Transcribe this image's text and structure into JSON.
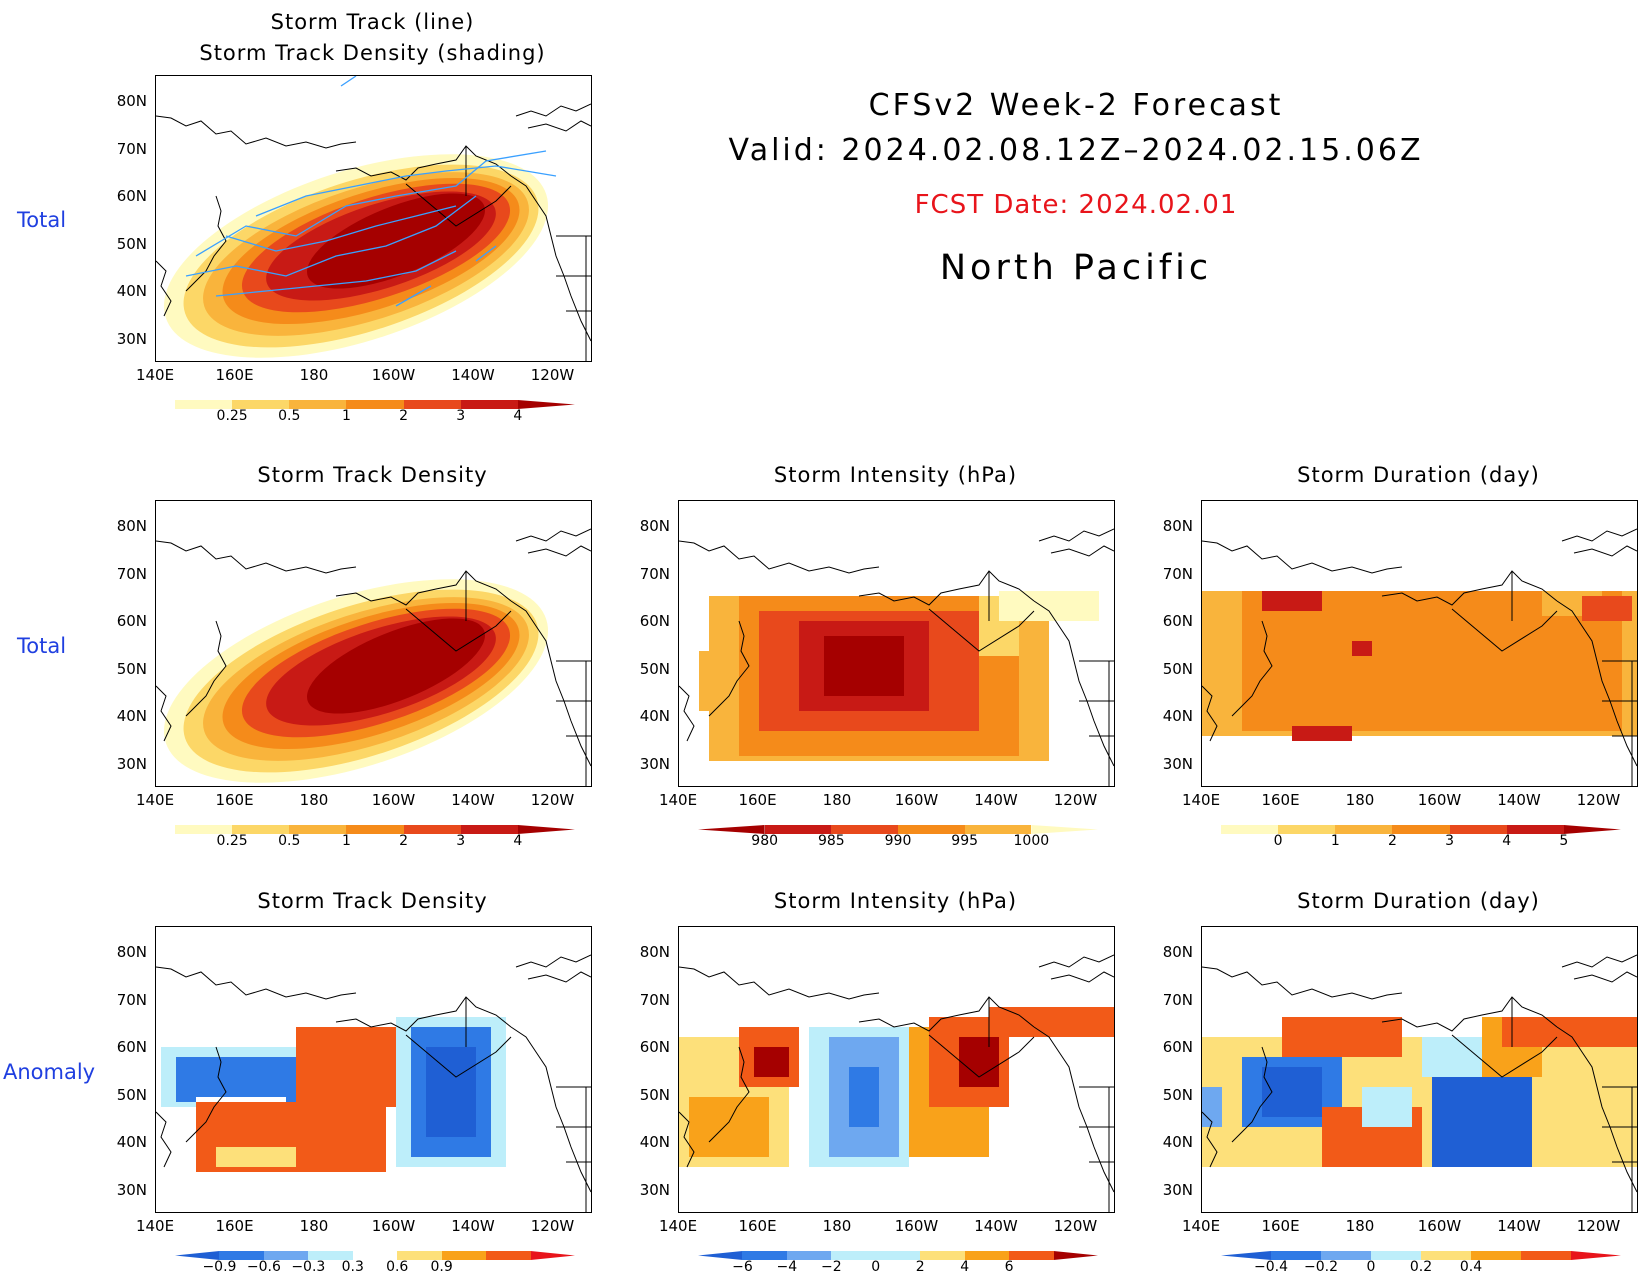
{
  "header": {
    "title": "CFSv2 Week-2 Forecast",
    "valid": "Valid: 2024.02.08.12Z–2024.02.15.06Z",
    "fcst_date": "FCST Date: 2024.02.01",
    "region": "North Pacific"
  },
  "row_labels": {
    "top": "Total",
    "middle": "Total",
    "bottom": "Anomaly"
  },
  "axes": {
    "lat_labels": [
      "80N",
      "70N",
      "60N",
      "50N",
      "40N",
      "30N"
    ],
    "lon_labels": [
      "140E",
      "160E",
      "180",
      "160W",
      "140W",
      "120W"
    ]
  },
  "panels": [
    {
      "id": "track-total",
      "title_line1": "Storm Track (line)",
      "title_line2": "Storm Track Density (shading)",
      "scale": [
        "#fffac0",
        "#ffd25a",
        "#ffa500",
        "#ff6a00",
        "#e8261a",
        "#a50000"
      ],
      "colorbar": {
        "labels": [
          "0.25",
          "0.5",
          "1",
          "2",
          "3",
          "4"
        ],
        "colors": [
          "#fffac0",
          "#fcd767",
          "#f9b43c",
          "#f58b1a",
          "#e8491c",
          "#c81a15",
          "#a50000"
        ],
        "lower_open": true
      }
    },
    {
      "id": "density-total",
      "title_line1": "Storm Track Density",
      "colorbar": {
        "labels": [
          "0.25",
          "0.5",
          "1",
          "2",
          "3",
          "4"
        ],
        "colors": [
          "#fffac0",
          "#fcd767",
          "#f9b43c",
          "#f58b1a",
          "#e8491c",
          "#c81a15",
          "#a50000"
        ],
        "lower_open": true
      }
    },
    {
      "id": "intensity-total",
      "title_line1": "Storm Intensity (hPa)",
      "colorbar": {
        "labels": [
          "980",
          "985",
          "990",
          "995",
          "1000"
        ],
        "colors": [
          "#a50000",
          "#c81a15",
          "#e8491c",
          "#f58b1a",
          "#f9b43c",
          "#fffac0"
        ],
        "upper_open": true
      }
    },
    {
      "id": "duration-total",
      "title_line1": "Storm Duration (day)",
      "colorbar": {
        "labels": [
          "0",
          "1",
          "2",
          "3",
          "4",
          "5"
        ],
        "colors": [
          "#fffac0",
          "#fcd767",
          "#f9b43c",
          "#f58b1a",
          "#e8491c",
          "#c81a15",
          "#a50000"
        ],
        "lower_open": true
      }
    },
    {
      "id": "density-anom",
      "title_line1": "Storm Track Density",
      "colorbar": {
        "labels": [
          "−0.9",
          "−0.6",
          "−0.3",
          "0.3",
          "0.6",
          "0.9"
        ],
        "colors": [
          "#1f5fd4",
          "#2f7ae5",
          "#6ea8f0",
          "#bdeefa",
          "#ffffff",
          "#fde07a",
          "#f9a21a",
          "#f25a18",
          "#e8141b"
        ]
      }
    },
    {
      "id": "intensity-anom",
      "title_line1": "Storm Intensity (hPa)",
      "colorbar": {
        "labels": [
          "−6",
          "−4",
          "−2",
          "0",
          "2",
          "4",
          "6"
        ],
        "colors": [
          "#1f5fd4",
          "#2f7ae5",
          "#6ea8f0",
          "#bdeefa",
          "#bdeefa",
          "#fde07a",
          "#f9a21a",
          "#f25a18",
          "#a50000"
        ]
      }
    },
    {
      "id": "duration-anom",
      "title_line1": "Storm Duration (day)",
      "colorbar": {
        "labels": [
          "−0.4",
          "−0.2",
          "0",
          "0.2",
          "0.4"
        ],
        "colors": [
          "#1f5fd4",
          "#2f7ae5",
          "#6ea8f0",
          "#bdeefa",
          "#fde07a",
          "#f9a21a",
          "#f25a18",
          "#e8141b"
        ]
      }
    }
  ]
}
